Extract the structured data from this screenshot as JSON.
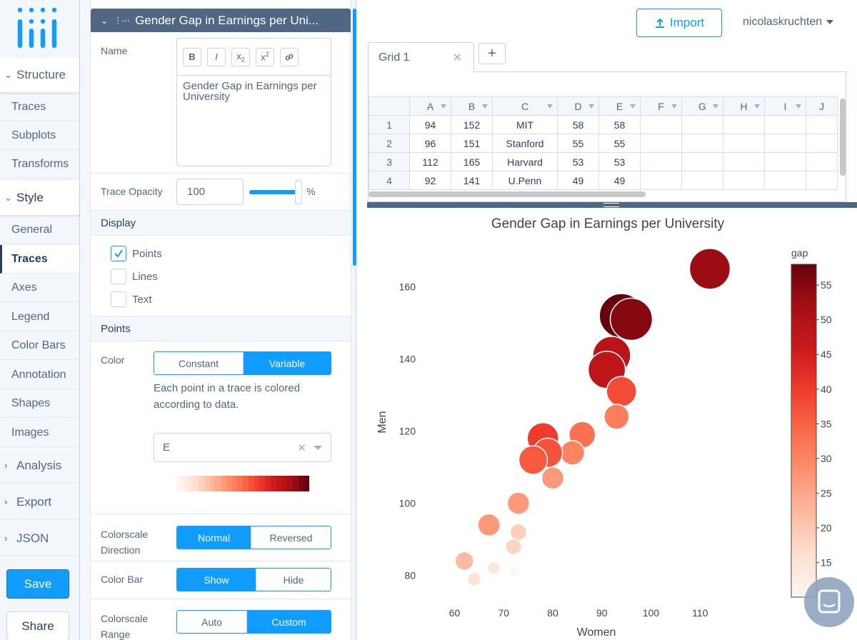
{
  "nav": {
    "structure": "Structure",
    "structure_items": [
      "Traces",
      "Subplots",
      "Transforms"
    ],
    "style": "Style",
    "style_items": [
      "General",
      "Traces",
      "Axes",
      "Legend",
      "Color Bars",
      "Annotation",
      "Shapes",
      "Images"
    ],
    "analysis": "Analysis",
    "export": "Export",
    "json": "JSON",
    "save": "Save",
    "share": "Share"
  },
  "panel": {
    "trace_title": "Gender Gap in Earnings per Uni...",
    "name_label": "Name",
    "rte_buttons": [
      "B",
      "I",
      "x2",
      "x2sup",
      "link"
    ],
    "name_value": "Gender Gap in Earnings per University",
    "opacity_label": "Trace Opacity",
    "opacity_value": "100",
    "opacity_unit": "%",
    "opacity_level": 1.0,
    "display_head": "Display",
    "display_options": [
      {
        "label": "Points",
        "checked": true
      },
      {
        "label": "Lines",
        "checked": false
      },
      {
        "label": "Text",
        "checked": false
      }
    ],
    "points_head": "Points",
    "color_label": "Color",
    "color_modes": [
      "Constant",
      "Variable"
    ],
    "color_desc": "Each point in a trace is colored according to data.",
    "color_column": "E",
    "colorscale_dir_label": "Colorscale Direction",
    "colorscale_dir": [
      "Normal",
      "Reversed"
    ],
    "colorbar_label": "Color Bar",
    "colorbar_opts": [
      "Show",
      "Hide"
    ],
    "colorscale_range_label": "Colorscale Range",
    "colorscale_range_opts": [
      "Auto",
      "Custom"
    ]
  },
  "header": {
    "import": "Import",
    "user": "nicolaskruchten"
  },
  "grid": {
    "tab": "Grid 1",
    "columns": [
      "A",
      "B",
      "C",
      "D",
      "E",
      "F",
      "G",
      "H",
      "I",
      "J"
    ],
    "rows": [
      {
        "n": "1",
        "cells": [
          "94",
          "152",
          "MIT",
          "58",
          "58",
          "",
          "",
          "",
          "",
          ""
        ]
      },
      {
        "n": "2",
        "cells": [
          "96",
          "151",
          "Stanford",
          "55",
          "55",
          "",
          "",
          "",
          "",
          ""
        ]
      },
      {
        "n": "3",
        "cells": [
          "112",
          "165",
          "Harvard",
          "53",
          "53",
          "",
          "",
          "",
          "",
          ""
        ]
      },
      {
        "n": "4",
        "cells": [
          "92",
          "141",
          "U.Penn",
          "49",
          "49",
          "",
          "",
          "",
          "",
          ""
        ]
      }
    ]
  },
  "colors": {
    "accent": "#119dff",
    "scale": [
      "#fff5f0",
      "#fee0d2",
      "#fcbba1",
      "#fc9272",
      "#fb6a4a",
      "#ef3b2c",
      "#cb181d",
      "#a50f15",
      "#67000d"
    ]
  },
  "chart_data": {
    "type": "scatter",
    "title": "Gender Gap in Earnings per University",
    "xlabel": "Women",
    "ylabel": "Men",
    "xlim": [
      56,
      120
    ],
    "ylim": [
      72,
      172
    ],
    "x_ticks": [
      "60",
      "70",
      "80",
      "90",
      "100",
      "110"
    ],
    "y_ticks": [
      "80",
      "100",
      "120",
      "140",
      "160"
    ],
    "colorbar_title": "gap",
    "colorbar_ticks": [
      "55",
      "50",
      "45",
      "40",
      "35",
      "30",
      "25",
      "20",
      "15"
    ],
    "colorbar_range": [
      10,
      58
    ],
    "points": [
      {
        "x": 94,
        "y": 152,
        "gap": 58
      },
      {
        "x": 96,
        "y": 151,
        "gap": 55
      },
      {
        "x": 112,
        "y": 165,
        "gap": 53
      },
      {
        "x": 92,
        "y": 141,
        "gap": 49
      },
      {
        "x": 91,
        "y": 137,
        "gap": 48
      },
      {
        "x": 94,
        "y": 131,
        "gap": 38
      },
      {
        "x": 93,
        "y": 124,
        "gap": 31
      },
      {
        "x": 86,
        "y": 119,
        "gap": 33
      },
      {
        "x": 78,
        "y": 118,
        "gap": 40
      },
      {
        "x": 84,
        "y": 114,
        "gap": 30
      },
      {
        "x": 79,
        "y": 114,
        "gap": 37
      },
      {
        "x": 76,
        "y": 112,
        "gap": 36
      },
      {
        "x": 80,
        "y": 107,
        "gap": 27
      },
      {
        "x": 73,
        "y": 100,
        "gap": 27
      },
      {
        "x": 67,
        "y": 94,
        "gap": 27
      },
      {
        "x": 73,
        "y": 92,
        "gap": 19
      },
      {
        "x": 72,
        "y": 88,
        "gap": 18
      },
      {
        "x": 62,
        "y": 84,
        "gap": 22
      },
      {
        "x": 68,
        "y": 82,
        "gap": 14
      },
      {
        "x": 72,
        "y": 81,
        "gap": 9
      },
      {
        "x": 64,
        "y": 79,
        "gap": 15
      }
    ]
  }
}
